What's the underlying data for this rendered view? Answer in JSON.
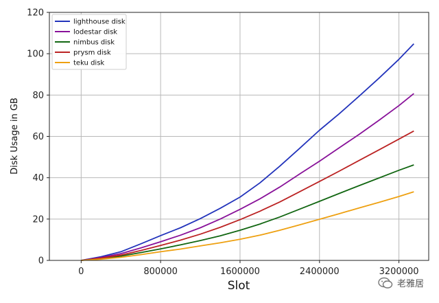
{
  "chart_data": {
    "type": "line",
    "title": "",
    "xlabel": "Slot",
    "ylabel": "Disk Usage in GB",
    "xlim": [
      -320000,
      3500000
    ],
    "ylim": [
      0,
      120
    ],
    "xticks": [
      0,
      800000,
      1600000,
      2400000,
      3200000
    ],
    "xtick_labels": [
      "0",
      "800000",
      "1600000",
      "2400000",
      "3200000"
    ],
    "yticks": [
      0,
      20,
      40,
      60,
      80,
      100,
      120
    ],
    "ytick_labels": [
      "0",
      "20",
      "40",
      "60",
      "80",
      "100",
      "120"
    ],
    "grid": true,
    "legend_position": "top-left",
    "x": [
      0,
      200000,
      400000,
      600000,
      800000,
      1000000,
      1200000,
      1400000,
      1600000,
      1800000,
      2000000,
      2200000,
      2400000,
      2600000,
      2800000,
      3000000,
      3200000,
      3350000
    ],
    "series": [
      {
        "name": "lighthouse disk",
        "color": "#2233bb",
        "values": [
          0,
          1.8,
          4.2,
          8.0,
          12.0,
          15.8,
          20.2,
          25.2,
          30.6,
          37.5,
          45.6,
          54.2,
          63.0,
          71.0,
          79.5,
          88.2,
          97.3,
          104.8
        ]
      },
      {
        "name": "lodestar disk",
        "color": "#881199",
        "values": [
          0,
          1.4,
          3.3,
          6.0,
          9.0,
          12.2,
          15.8,
          20.0,
          24.7,
          29.8,
          35.5,
          41.8,
          48.0,
          54.5,
          61.0,
          67.8,
          74.9,
          80.7
        ]
      },
      {
        "name": "nimbus disk",
        "color": "#116611",
        "values": [
          0,
          0.9,
          2.1,
          3.8,
          5.6,
          7.5,
          9.6,
          11.9,
          14.6,
          17.6,
          21.0,
          24.8,
          28.6,
          32.4,
          36.2,
          39.9,
          43.6,
          46.2
        ]
      },
      {
        "name": "prysm disk",
        "color": "#bb2222",
        "values": [
          0,
          1.1,
          2.6,
          4.8,
          7.2,
          9.8,
          12.7,
          16.0,
          19.7,
          23.8,
          28.3,
          33.2,
          38.2,
          43.2,
          48.4,
          53.5,
          58.7,
          62.6
        ]
      },
      {
        "name": "teku disk",
        "color": "#eea010",
        "values": [
          0,
          0.6,
          1.5,
          2.8,
          4.2,
          5.5,
          7.0,
          8.5,
          10.2,
          12.2,
          14.6,
          17.2,
          19.9,
          22.6,
          25.4,
          28.1,
          30.9,
          33.2
        ]
      }
    ]
  },
  "watermark": {
    "text": "老雅居"
  }
}
